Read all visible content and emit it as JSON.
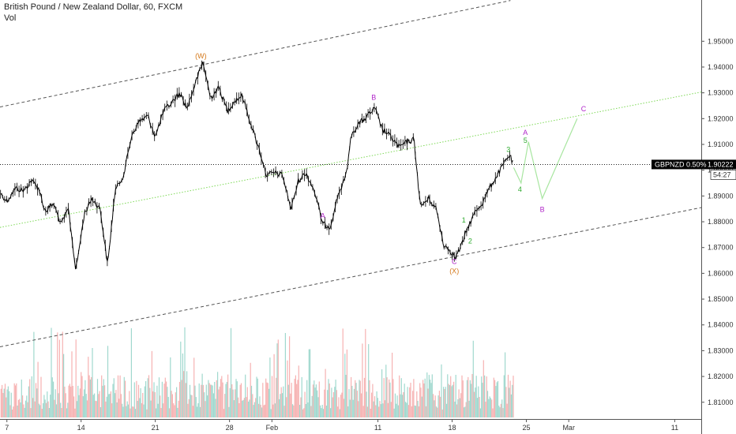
{
  "header": {
    "title": "British Pound / New Zealand Dollar, 60, FXCM",
    "vol_label": "Vol"
  },
  "colors": {
    "candle": "#000000",
    "vol_up": "#8fd1c6",
    "vol_down": "#f4a5a5",
    "channel": "#555555",
    "midline": "#7ed957",
    "projection": "#a8e6a0",
    "wave_orange": "#d4781a",
    "wave_purple": "#b026c9",
    "wave_green": "#2eaa2e"
  },
  "chart_data": {
    "type": "line",
    "symbol": "GBPNZD",
    "timeframe": "60",
    "x_tick_labels": [
      "7",
      "14",
      "21",
      "28",
      "Feb",
      "11",
      "18",
      "25",
      "Mar",
      "11"
    ],
    "x_tick_days": [
      7,
      14,
      21,
      28,
      32,
      42,
      49,
      56,
      60,
      70
    ],
    "y_tick_labels": [
      "1.81000",
      "1.82000",
      "1.83000",
      "1.84000",
      "1.85000",
      "1.86000",
      "1.87000",
      "1.88000",
      "1.89000",
      "1.90000",
      "1.91000",
      "1.92000",
      "1.93000",
      "1.94000",
      "1.95000"
    ],
    "y_ticks": [
      1.81,
      1.82,
      1.83,
      1.84,
      1.85,
      1.86,
      1.87,
      1.88,
      1.89,
      1.9,
      1.91,
      1.92,
      1.93,
      1.94,
      1.95
    ],
    "ylim": [
      1.8035,
      1.966
    ],
    "xlim": [
      6.35,
      72.5
    ],
    "price_path": [
      [
        6.4,
        1.891
      ],
      [
        7.0,
        1.888
      ],
      [
        7.8,
        1.893
      ],
      [
        8.6,
        1.892
      ],
      [
        9.3,
        1.896
      ],
      [
        10.0,
        1.893
      ],
      [
        10.6,
        1.884
      ],
      [
        11.4,
        1.887
      ],
      [
        12.1,
        1.879
      ],
      [
        12.8,
        1.885
      ],
      [
        13.5,
        1.861
      ],
      [
        14.3,
        1.883
      ],
      [
        15.0,
        1.889
      ],
      [
        15.8,
        1.885
      ],
      [
        16.5,
        1.863
      ],
      [
        17.2,
        1.892
      ],
      [
        18.0,
        1.898
      ],
      [
        18.8,
        1.914
      ],
      [
        19.5,
        1.919
      ],
      [
        20.3,
        1.921
      ],
      [
        21.0,
        1.913
      ],
      [
        21.8,
        1.923
      ],
      [
        22.5,
        1.926
      ],
      [
        23.3,
        1.93
      ],
      [
        24.0,
        1.924
      ],
      [
        24.8,
        1.934
      ],
      [
        25.5,
        1.942
      ],
      [
        26.2,
        1.928
      ],
      [
        27.0,
        1.932
      ],
      [
        27.8,
        1.923
      ],
      [
        28.5,
        1.927
      ],
      [
        29.2,
        1.929
      ],
      [
        30.0,
        1.918
      ],
      [
        30.8,
        1.908
      ],
      [
        31.5,
        1.898
      ],
      [
        32.2,
        1.899
      ],
      [
        33.0,
        1.898
      ],
      [
        33.8,
        1.885
      ],
      [
        34.5,
        1.896
      ],
      [
        35.2,
        1.899
      ],
      [
        36.0,
        1.892
      ],
      [
        36.8,
        1.879
      ],
      [
        37.5,
        1.878
      ],
      [
        38.2,
        1.89
      ],
      [
        39.0,
        1.898
      ],
      [
        39.5,
        1.914
      ],
      [
        40.2,
        1.918
      ],
      [
        41.0,
        1.921
      ],
      [
        41.7,
        1.924
      ],
      [
        42.4,
        1.916
      ],
      [
        43.2,
        1.913
      ],
      [
        44.0,
        1.909
      ],
      [
        44.8,
        1.911
      ],
      [
        45.4,
        1.912
      ],
      [
        46.0,
        1.886
      ],
      [
        46.8,
        1.889
      ],
      [
        47.5,
        1.885
      ],
      [
        48.2,
        1.871
      ],
      [
        48.8,
        1.869
      ],
      [
        49.3,
        1.866
      ],
      [
        49.9,
        1.871
      ],
      [
        50.5,
        1.878
      ],
      [
        51.2,
        1.884
      ],
      [
        51.8,
        1.887
      ],
      [
        52.5,
        1.893
      ],
      [
        53.1,
        1.897
      ],
      [
        53.8,
        1.902
      ],
      [
        54.4,
        1.906
      ],
      [
        54.8,
        1.902
      ]
    ],
    "projection_path": [
      [
        54.8,
        1.901
      ],
      [
        55.5,
        1.895
      ],
      [
        56.2,
        1.911
      ],
      [
        57.5,
        1.889
      ],
      [
        60.8,
        1.92
      ]
    ],
    "last_price": 1.90222,
    "badge_label": "GBPNZD 0.50%",
    "badge_value": "1.90222",
    "countdown": "54:27",
    "channel_upper": [
      [
        6.35,
        1.9245
      ],
      [
        54.5,
        1.9658
      ]
    ],
    "channel_lower": [
      [
        6.35,
        1.8315
      ],
      [
        72.5,
        1.8855
      ]
    ],
    "channel_mid": [
      [
        6.35,
        1.8778
      ],
      [
        72.5,
        1.9303
      ]
    ],
    "wave_labels": [
      {
        "text": "(W)",
        "x": 25.3,
        "y": 1.9441,
        "color": "orange"
      },
      {
        "text": "A",
        "x": 36.8,
        "y": 1.8821,
        "color": "purple"
      },
      {
        "text": "B",
        "x": 41.6,
        "y": 1.928,
        "color": "purple"
      },
      {
        "text": "C",
        "x": 49.2,
        "y": 1.8643,
        "color": "purple"
      },
      {
        "text": "(X)",
        "x": 49.2,
        "y": 1.8607,
        "color": "orange"
      },
      {
        "text": "1",
        "x": 50.1,
        "y": 1.8805,
        "color": "green"
      },
      {
        "text": "2",
        "x": 50.7,
        "y": 1.8723,
        "color": "green"
      },
      {
        "text": "3",
        "x": 54.3,
        "y": 1.9078,
        "color": "green"
      },
      {
        "text": "4",
        "x": 55.4,
        "y": 1.8923,
        "color": "green"
      },
      {
        "text": "5",
        "x": 55.9,
        "y": 1.9114,
        "color": "green"
      },
      {
        "text": "A",
        "x": 55.9,
        "y": 1.9144,
        "color": "purple"
      },
      {
        "text": "B",
        "x": 57.5,
        "y": 1.8846,
        "color": "purple"
      },
      {
        "text": "C",
        "x": 61.4,
        "y": 1.9236,
        "color": "purple"
      }
    ]
  }
}
